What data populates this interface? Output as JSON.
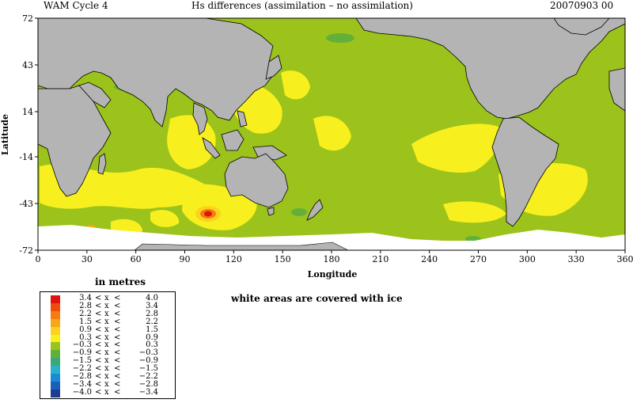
{
  "header": {
    "left": "WAM Cycle 4",
    "center": "Hs differences (assimilation – no assimilation)",
    "right": "20070903 00"
  },
  "axes": {
    "xlabel": "Longitude",
    "ylabel": "Latitude",
    "xticks": [
      "0",
      "30",
      "60",
      "90",
      "120",
      "150",
      "180",
      "210",
      "240",
      "270",
      "300",
      "330",
      "360"
    ],
    "yticks": [
      "72",
      "43",
      "14",
      "-14",
      "-43",
      "-72"
    ],
    "xrange": [
      0,
      360
    ],
    "yrange": [
      -72,
      72
    ]
  },
  "units_label": "in metres",
  "ice_note": "white areas are covered with ice",
  "colors": {
    "ocean_background": "#9cc21c",
    "land": "#b4b4b4",
    "ice": "#ffffff",
    "coast": "#000000"
  },
  "legend": [
    {
      "lo": "3.4",
      "hi": "4.0",
      "color": "#e0140c"
    },
    {
      "lo": "2.8",
      "hi": "3.4",
      "color": "#f04a0c"
    },
    {
      "lo": "2.2",
      "hi": "2.8",
      "color": "#f57c0e"
    },
    {
      "lo": "1.5",
      "hi": "2.2",
      "color": "#f8a61a"
    },
    {
      "lo": "0.9",
      "hi": "1.5",
      "color": "#fcd21e"
    },
    {
      "lo": "0.3",
      "hi": "0.9",
      "color": "#f7f01e"
    },
    {
      "lo": "−0.3",
      "hi": "0.3",
      "color": "#9cc21c"
    },
    {
      "lo": "−0.9",
      "hi": "−0.3",
      "color": "#62b03a"
    },
    {
      "lo": "−1.5",
      "hi": "−0.9",
      "color": "#3aa87a"
    },
    {
      "lo": "−2.2",
      "hi": "−1.5",
      "color": "#2ab0c8"
    },
    {
      "lo": "−2.8",
      "hi": "−2.2",
      "color": "#1a8ad6"
    },
    {
      "lo": "−3.4",
      "hi": "−2.8",
      "color": "#1a5fb8"
    },
    {
      "lo": "−4.0",
      "hi": "−3.4",
      "color": "#1c3c96"
    }
  ],
  "legend_symbols": {
    "lt": "<",
    "x": "x"
  }
}
